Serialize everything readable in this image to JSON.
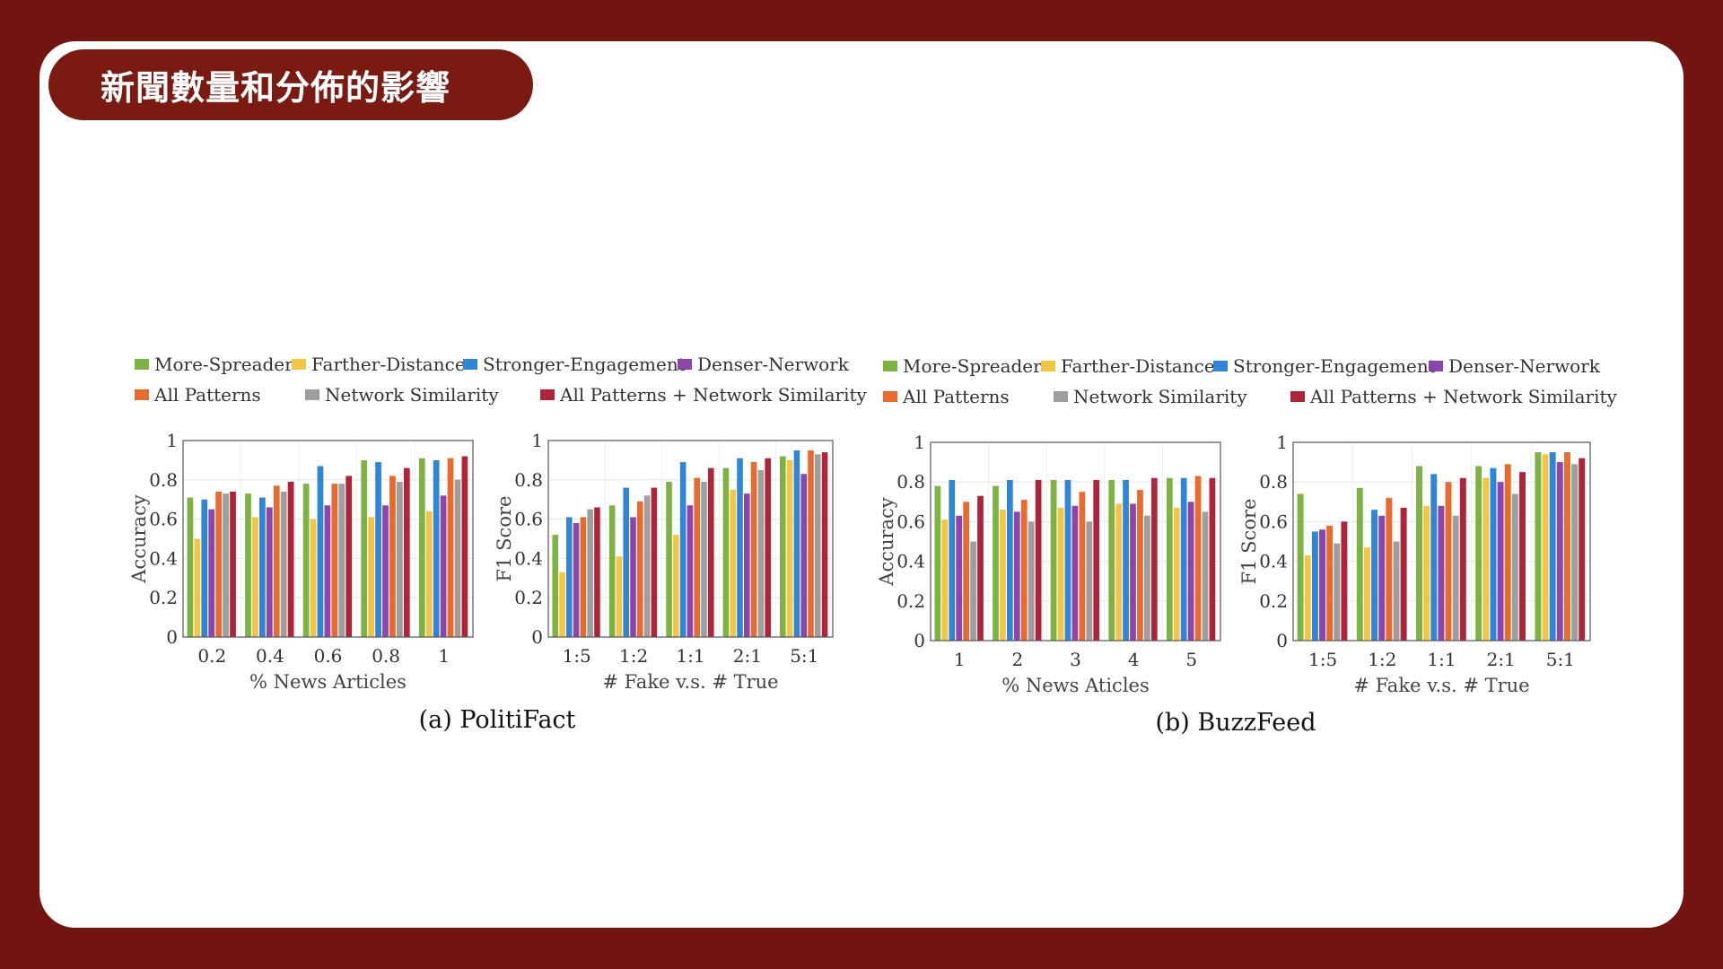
{
  "slide": {
    "title": "新聞數量和分佈的影響"
  },
  "colors": {
    "page_background": "#72140f",
    "card_background": "#ffffff",
    "title_pill": "#7a1a12"
  },
  "figures": [
    {
      "caption": "(a) PolitiFact",
      "legend": [
        [
          "More-Spreader",
          "Farther-Distance",
          "Stronger-Engagement",
          "Denser-Nerwork"
        ],
        [
          "All Patterns",
          "Network Similarity",
          "All Patterns + Network Similarity"
        ]
      ]
    },
    {
      "caption": "(b) BuzzFeed",
      "legend": [
        [
          "More-Spreader",
          "Farther-Distance",
          "Stronger-Engagement",
          "Denser-Nerwork"
        ],
        [
          "All Patterns",
          "Network Similarity",
          "All Patterns + Network Similarity"
        ]
      ]
    }
  ],
  "chart_data": [
    {
      "type": "bar",
      "figure": "(a) PolitiFact",
      "xlabel": "% News Articles",
      "ylabel": "Accuracy",
      "ylim": [
        0,
        1
      ],
      "yticks": [
        "0",
        "0.2",
        "0.4",
        "0.6",
        "0.8",
        "1"
      ],
      "categories": [
        "0.2",
        "0.4",
        "0.6",
        "0.8",
        "1"
      ],
      "grid": true,
      "series": [
        {
          "name": "More-Spreader",
          "color": "#7cb342",
          "values": [
            0.71,
            0.73,
            0.78,
            0.9,
            0.91
          ]
        },
        {
          "name": "Farther-Distance",
          "color": "#f4c542",
          "values": [
            0.5,
            0.61,
            0.6,
            0.61,
            0.64
          ]
        },
        {
          "name": "Stronger-Engagement",
          "color": "#2f86d6",
          "values": [
            0.7,
            0.71,
            0.87,
            0.89,
            0.9
          ]
        },
        {
          "name": "Denser-Nerwork",
          "color": "#8e44ad",
          "values": [
            0.65,
            0.66,
            0.67,
            0.67,
            0.72
          ]
        },
        {
          "name": "All Patterns",
          "color": "#e86a2c",
          "values": [
            0.74,
            0.77,
            0.78,
            0.82,
            0.91
          ]
        },
        {
          "name": "Network Similarity",
          "color": "#9e9e9e",
          "values": [
            0.73,
            0.74,
            0.78,
            0.79,
            0.8
          ]
        },
        {
          "name": "All Patterns + Network Similarity",
          "color": "#b0243a",
          "values": [
            0.74,
            0.79,
            0.82,
            0.86,
            0.92
          ]
        }
      ]
    },
    {
      "type": "bar",
      "figure": "(a) PolitiFact",
      "xlabel": "# Fake v.s. # True",
      "ylabel": "F1 Score",
      "ylim": [
        0,
        1
      ],
      "yticks": [
        "0",
        "0.2",
        "0.4",
        "0.6",
        "0.8",
        "1"
      ],
      "categories": [
        "1:5",
        "1:2",
        "1:1",
        "2:1",
        "5:1"
      ],
      "grid": true,
      "series": [
        {
          "name": "More-Spreader",
          "color": "#7cb342",
          "values": [
            0.52,
            0.67,
            0.79,
            0.86,
            0.92
          ]
        },
        {
          "name": "Farther-Distance",
          "color": "#f4c542",
          "values": [
            0.33,
            0.41,
            0.52,
            0.75,
            0.9
          ]
        },
        {
          "name": "Stronger-Engagement",
          "color": "#2f86d6",
          "values": [
            0.61,
            0.76,
            0.89,
            0.91,
            0.95
          ]
        },
        {
          "name": "Denser-Nerwork",
          "color": "#8e44ad",
          "values": [
            0.58,
            0.61,
            0.67,
            0.73,
            0.83
          ]
        },
        {
          "name": "All Patterns",
          "color": "#e86a2c",
          "values": [
            0.61,
            0.69,
            0.81,
            0.89,
            0.95
          ]
        },
        {
          "name": "Network Similarity",
          "color": "#9e9e9e",
          "values": [
            0.65,
            0.72,
            0.79,
            0.85,
            0.93
          ]
        },
        {
          "name": "All Patterns + Network Similarity",
          "color": "#b0243a",
          "values": [
            0.66,
            0.76,
            0.86,
            0.91,
            0.94
          ]
        }
      ]
    },
    {
      "type": "bar",
      "figure": "(b) BuzzFeed",
      "xlabel": "% News Aticles",
      "ylabel": "Accuracy",
      "ylim": [
        0,
        1
      ],
      "yticks": [
        "0",
        "0.2",
        "0.4",
        "0.6",
        "0.8",
        "1"
      ],
      "categories": [
        "1",
        "2",
        "3",
        "4",
        "5"
      ],
      "grid": true,
      "series": [
        {
          "name": "More-Spreader",
          "color": "#7cb342",
          "values": [
            0.78,
            0.78,
            0.81,
            0.81,
            0.82
          ]
        },
        {
          "name": "Farther-Distance",
          "color": "#f4c542",
          "values": [
            0.61,
            0.66,
            0.67,
            0.69,
            0.67
          ]
        },
        {
          "name": "Stronger-Engagement",
          "color": "#2f86d6",
          "values": [
            0.81,
            0.81,
            0.81,
            0.81,
            0.82
          ]
        },
        {
          "name": "Denser-Nerwork",
          "color": "#8e44ad",
          "values": [
            0.63,
            0.65,
            0.68,
            0.69,
            0.7
          ]
        },
        {
          "name": "All Patterns",
          "color": "#e86a2c",
          "values": [
            0.7,
            0.71,
            0.75,
            0.76,
            0.83
          ]
        },
        {
          "name": "Network Similarity",
          "color": "#9e9e9e",
          "values": [
            0.5,
            0.6,
            0.6,
            0.63,
            0.65
          ]
        },
        {
          "name": "All Patterns + Network Similarity",
          "color": "#b0243a",
          "values": [
            0.73,
            0.81,
            0.81,
            0.82,
            0.82
          ]
        }
      ]
    },
    {
      "type": "bar",
      "figure": "(b) BuzzFeed",
      "xlabel": "# Fake v.s. # True",
      "ylabel": "F1 Score",
      "ylim": [
        0,
        1
      ],
      "yticks": [
        "0",
        "0.2",
        "0.4",
        "0.6",
        "0.8",
        "1"
      ],
      "categories": [
        "1:5",
        "1:2",
        "1:1",
        "2:1",
        "5:1"
      ],
      "grid": true,
      "series": [
        {
          "name": "More-Spreader",
          "color": "#7cb342",
          "values": [
            0.74,
            0.77,
            0.88,
            0.88,
            0.95
          ]
        },
        {
          "name": "Farther-Distance",
          "color": "#f4c542",
          "values": [
            0.43,
            0.47,
            0.68,
            0.82,
            0.94
          ]
        },
        {
          "name": "Stronger-Engagement",
          "color": "#2f86d6",
          "values": [
            0.55,
            0.66,
            0.84,
            0.87,
            0.95
          ]
        },
        {
          "name": "Denser-Nerwork",
          "color": "#8e44ad",
          "values": [
            0.56,
            0.63,
            0.68,
            0.8,
            0.9
          ]
        },
        {
          "name": "All Patterns",
          "color": "#e86a2c",
          "values": [
            0.58,
            0.72,
            0.8,
            0.89,
            0.95
          ]
        },
        {
          "name": "Network Similarity",
          "color": "#9e9e9e",
          "values": [
            0.49,
            0.5,
            0.63,
            0.74,
            0.89
          ]
        },
        {
          "name": "All Patterns + Network Similarity",
          "color": "#b0243a",
          "values": [
            0.6,
            0.67,
            0.82,
            0.85,
            0.92
          ]
        }
      ]
    }
  ]
}
